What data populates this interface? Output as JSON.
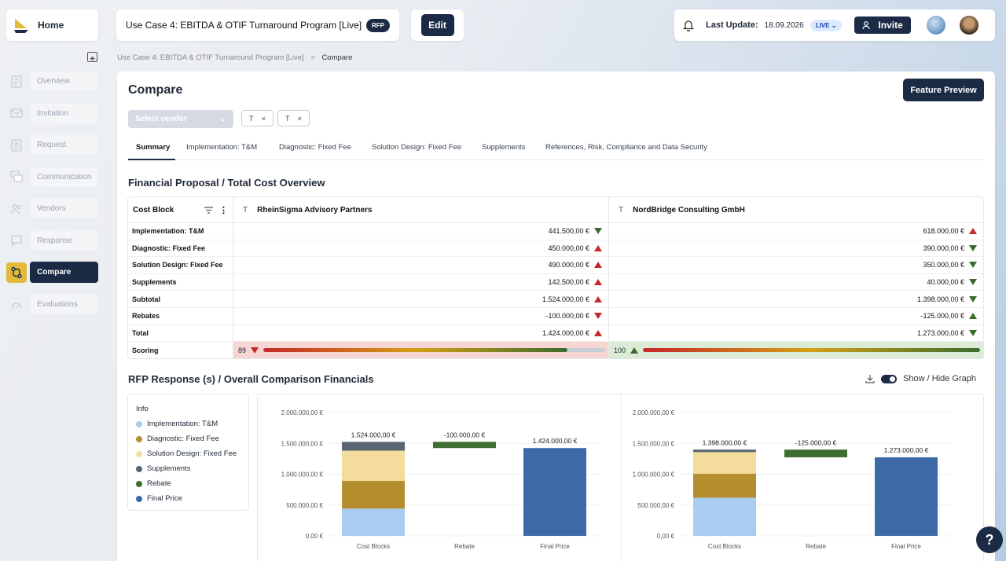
{
  "header": {
    "home_label": "Home",
    "project_title": "Use Case 4: EBITDA & OTIF Turnaround Program [Live]",
    "project_badge": "RFP",
    "edit_label": "Edit",
    "last_update_label": "Last Update:",
    "last_update_value": "18.09.2026",
    "live_badge": "LIVE",
    "invite_label": "Invite"
  },
  "sidebar": {
    "items": [
      {
        "label": "Overview",
        "icon": "document-icon"
      },
      {
        "label": "Invitation",
        "icon": "mail-icon"
      },
      {
        "label": "Request",
        "icon": "list-icon"
      },
      {
        "label": "Communication",
        "icon": "chat-icon"
      },
      {
        "label": "Vendors",
        "icon": "users-icon"
      },
      {
        "label": "Response",
        "icon": "message-icon"
      },
      {
        "label": "Compare",
        "icon": "compare-icon"
      },
      {
        "label": "Evaluations",
        "icon": "gauge-icon"
      }
    ]
  },
  "breadcrumb": {
    "parent": "Use Case 4: EBITDA & OTIF Turnaround Program [Live]",
    "sep": ">",
    "current": "Compare"
  },
  "page": {
    "title": "Compare",
    "feature_preview": "Feature Preview",
    "vendor_select_placeholder": "Select vendor",
    "chip1": "T",
    "chip2": "T",
    "chip_close": "×"
  },
  "tabs": [
    "Summary",
    "Implementation: T&M",
    "Diagnostic: Fixed Fee",
    "Solution Design: Fixed Fee",
    "Supplements",
    "References, Risk, Compliance and Data Security"
  ],
  "financial": {
    "title": "Financial Proposal / Total Cost Overview",
    "col_header": "Cost Block",
    "type_icon": "T",
    "rows": [
      "Implementation: T&M",
      "Diagnostic: Fixed Fee",
      "Solution Design: Fixed Fee",
      "Supplements",
      "Subtotal",
      "Rebates",
      "Total",
      "Scoring"
    ],
    "vendors": [
      {
        "name": "RheinSigma Advisory Partners",
        "values": [
          "441.500,00 €",
          "450.000,00 €",
          "490.000,00 €",
          "142.500,00 €",
          "1.524.000,00 €",
          "-100.000,00 €",
          "1.424.000,00 €"
        ],
        "trend": [
          "down",
          "up",
          "up",
          "up",
          "up",
          "downr",
          "up"
        ],
        "score": "89",
        "score_fraction": 0.89,
        "score_trend": "downr",
        "score_bg": "#f6d5d3"
      },
      {
        "name": "NordBridge Consulting GmbH",
        "values": [
          "618.000,00 €",
          "390.000,00 €",
          "350.000,00 €",
          "40.000,00 €",
          "1.398.000,00 €",
          "-125.000,00 €",
          "1.273.000,00 €"
        ],
        "trend": [
          "up",
          "down",
          "down",
          "down",
          "down",
          "upg",
          "down"
        ],
        "score": "100",
        "score_fraction": 1.0,
        "score_trend": "upg",
        "score_bg": "#dcebd6"
      }
    ]
  },
  "comparison": {
    "title": "RFP Response (s) / Overall Comparison Financials",
    "show_hide": "Show / Hide Graph",
    "legend_title": "Info",
    "legend": [
      {
        "name": "Implementation: T&M",
        "color": "#a9cdf0"
      },
      {
        "name": "Diagnostic: Fixed Fee",
        "color": "#b48d2e"
      },
      {
        "name": "Solution Design: Fixed Fee",
        "color": "#f3dc9c"
      },
      {
        "name": "Supplements",
        "color": "#5a6572"
      },
      {
        "name": "Rebate",
        "color": "#3f6d32"
      },
      {
        "name": "Final Price",
        "color": "#3c6aa6"
      }
    ]
  },
  "chart_data": [
    {
      "type": "bar",
      "categories": [
        "Cost Blocks",
        "Rebate",
        "Final Price"
      ],
      "ylim": [
        0,
        2000000
      ],
      "yticks": [
        "0,00 €",
        "500.000,00 €",
        "1.000.000,00 €",
        "1.500.000,00 €",
        "2.000.000,00 €"
      ],
      "stack": [
        441500,
        450000,
        490000,
        142500
      ],
      "rebate": [
        1424000,
        1524000
      ],
      "final": 1424000,
      "labels": [
        "1.524.000,00 €",
        "-100.000,00 €",
        "1.424.000,00 €"
      ]
    },
    {
      "type": "bar",
      "categories": [
        "Cost Blocks",
        "Rebate",
        "Final Price"
      ],
      "ylim": [
        0,
        2000000
      ],
      "yticks": [
        "0,00 €",
        "500.000,00 €",
        "1.000.000,00 €",
        "1.500.000,00 €",
        "2.000.000,00 €"
      ],
      "stack": [
        618000,
        390000,
        350000,
        40000
      ],
      "rebate": [
        1273000,
        1398000
      ],
      "final": 1273000,
      "labels": [
        "1.398.000,00 €",
        "-125.000,00 €",
        "1.273.000,00 €"
      ]
    }
  ]
}
